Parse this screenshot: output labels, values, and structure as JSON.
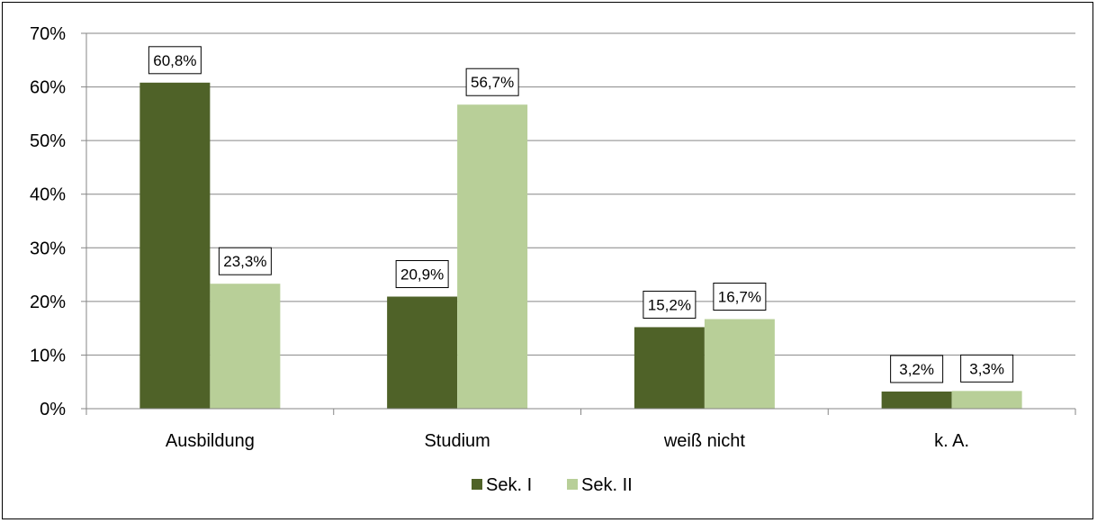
{
  "chart_data": {
    "type": "bar",
    "title": "",
    "xlabel": "",
    "ylabel": "",
    "categories": [
      "Ausbildung",
      "Studium",
      "weiß nicht",
      "k. A."
    ],
    "series": [
      {
        "name": "Sek. I",
        "values": [
          60.8,
          20.9,
          15.2,
          3.2
        ],
        "labels": [
          "60,8%",
          "20,9%",
          "15,2%",
          "3,2%"
        ],
        "color": "#4f6228"
      },
      {
        "name": "Sek. II",
        "values": [
          23.3,
          56.7,
          16.7,
          3.3
        ],
        "labels": [
          "23,3%",
          "56,7%",
          "16,7%",
          "3,3%"
        ],
        "color": "#b8cf98"
      }
    ],
    "ylim": [
      0,
      70
    ],
    "yticks": [
      0,
      10,
      20,
      30,
      40,
      50,
      60,
      70
    ],
    "ytick_labels": [
      "0%",
      "10%",
      "20%",
      "30%",
      "40%",
      "50%",
      "60%",
      "70%"
    ],
    "grid": true,
    "gridline_color": "#868686",
    "legend_position": "bottom"
  }
}
